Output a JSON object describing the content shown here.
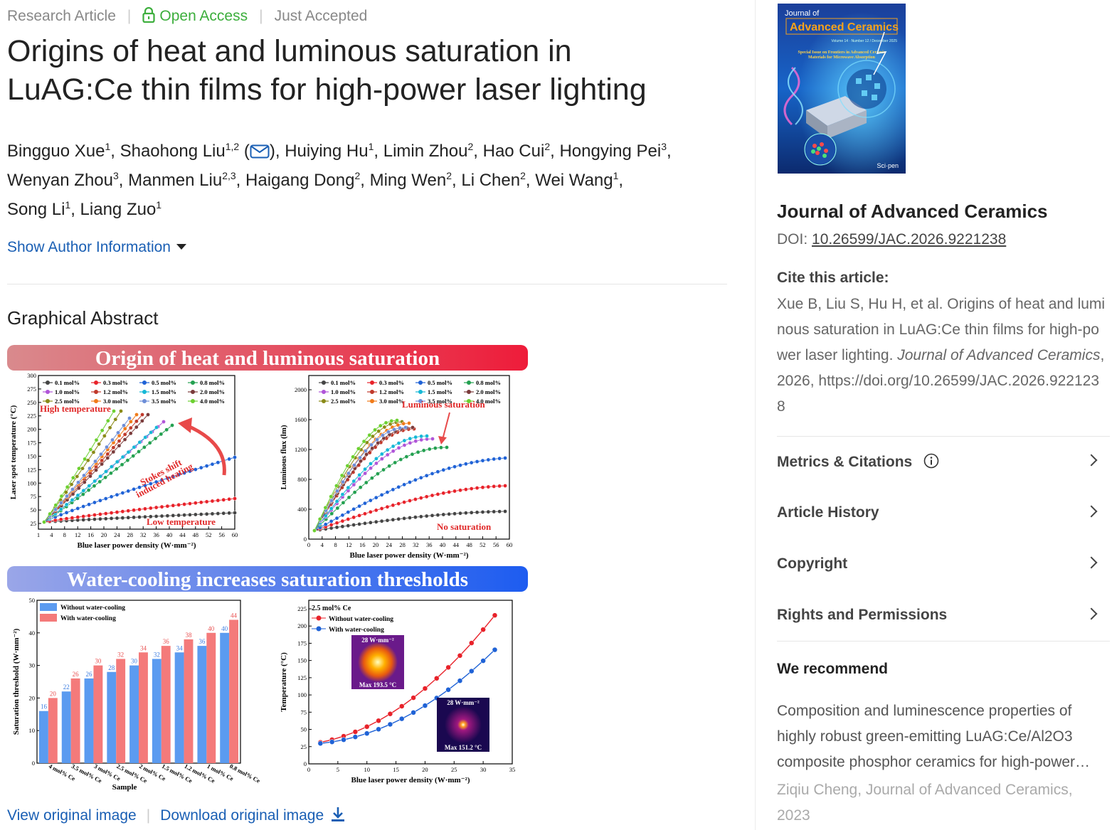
{
  "meta": {
    "type": "Research Article",
    "open_access": "Open Access",
    "status": "Just Accepted"
  },
  "title_line1": "Origins of heat and luminous saturation in",
  "title_line2": "LuAG:Ce thin films for high-power laser lighting",
  "authors": [
    {
      "name": "Bingguo Xue",
      "aff": "1"
    },
    {
      "name": "Shaohong Liu",
      "aff": "1,2"
    },
    {
      "name": "Huiying Hu",
      "aff": "1"
    },
    {
      "name": "Limin Zhou",
      "aff": "2"
    },
    {
      "name": "Hao Cui",
      "aff": "2"
    },
    {
      "name": "Hongying Pei",
      "aff": "3"
    },
    {
      "name": "Wenyan Zhou",
      "aff": "3"
    },
    {
      "name": "Manmen Liu",
      "aff": "2,3"
    },
    {
      "name": "Haigang Dong",
      "aff": "2"
    },
    {
      "name": "Ming Wen",
      "aff": "2"
    },
    {
      "name": "Li Chen",
      "aff": "2"
    },
    {
      "name": "Wei Wang",
      "aff": "1"
    },
    {
      "name": "Song Li",
      "aff": "1"
    },
    {
      "name": "Liang Zuo",
      "aff": "1"
    }
  ],
  "show_author_info": "Show Author Information",
  "graphical_abstract": {
    "heading": "Graphical Abstract",
    "banner1": "Origin of heat and luminous saturation",
    "banner2": "Water-cooling increases saturation thresholds",
    "legend_conc": [
      "0.1 mol%",
      "0.3 mol%",
      "0.5 mol%",
      "0.8 mol%",
      "1.0 mol%",
      "1.2 mol%",
      "1.5 mol%",
      "2.0 mol%",
      "2.5 mol%",
      "3.0 mol%",
      "3.5 mol%",
      "4.0 mol%"
    ],
    "p1": {
      "ylabel": "Laser spot temperature (°C)",
      "xlabel": "Blue laser power density (W·mm⁻²)",
      "ticks_y": [
        "300",
        "275",
        "250",
        "225",
        "200",
        "175",
        "150",
        "125",
        "100",
        "75",
        "50",
        "25"
      ],
      "ticks_x": [
        "1",
        "4",
        "8",
        "12",
        "16",
        "20",
        "24",
        "28",
        "32",
        "36",
        "40",
        "44",
        "48",
        "52",
        "56",
        "60"
      ],
      "ann_high": "High temperature",
      "ann_low": "Low temperature",
      "ann_stokes1": "Stokes shift",
      "ann_stokes2": "induced heating"
    },
    "p2": {
      "ylabel": "Luminous flux (lm)",
      "xlabel": "Blue laser power density (W·mm⁻²)",
      "ticks_y": [
        "2000",
        "1600",
        "1200",
        "800",
        "400",
        "0"
      ],
      "ticks_x": [
        "0",
        "4",
        "8",
        "12",
        "16",
        "20",
        "24",
        "28",
        "32",
        "36",
        "40",
        "44",
        "48",
        "52",
        "56",
        "60"
      ],
      "ann_sat": "Luminous saturation",
      "ann_nosat": "No saturation"
    },
    "p3": {
      "ylabel": "Saturation threshold (W·mm⁻²)",
      "xlabel": "Sample",
      "legend": [
        "Without water-cooling",
        "With water-cooling"
      ],
      "samples": [
        "4 mol% Ce",
        "3.5 mol% Ce",
        "3 mol% Ce",
        "2.5 mol% Ce",
        "2 mol% Ce",
        "1.5 mol% Ce",
        "1.2 mol% Ce",
        "1 mol% Ce",
        "0.8 mol% Ce"
      ],
      "without": [
        16,
        22,
        26,
        28,
        30,
        32,
        34,
        36,
        40
      ],
      "with": [
        20,
        26,
        30,
        32,
        34,
        36,
        38,
        40,
        44
      ],
      "ticks_y": [
        "50",
        "40",
        "30",
        "20",
        "10",
        "0"
      ]
    },
    "p4": {
      "ylabel": "Temperature (°C)",
      "xlabel": "Blue laser power density (W·mm⁻²)",
      "label": "2.5 mol% Ce",
      "legend": [
        "Without water-cooling",
        "With water-cooling"
      ],
      "ticks_y": [
        "225",
        "200",
        "175",
        "150",
        "125",
        "100",
        "75",
        "50",
        "25",
        "0"
      ],
      "ticks_x": [
        "0",
        "5",
        "10",
        "15",
        "20",
        "25",
        "30",
        "35"
      ],
      "inset1_power": "28 W·mm⁻²",
      "inset1_max": "Max 193.5 °C",
      "inset2_power": "28 W·mm⁻²",
      "inset2_max": "Max 151.2 °C"
    }
  },
  "image_links": {
    "view": "View original image",
    "download": "Download original image"
  },
  "cover": {
    "journal_small": "Journal of",
    "journal_big": "Advanced Ceramics",
    "vol": "Volume 14 · Number 12 / December 2025",
    "special1": "Special Issue on Frontiers in Advanced Ceramic",
    "special2": "Materials for Microwave Absorption",
    "publisher": "Sci·pen"
  },
  "sidebar": {
    "journal": "Journal of Advanced Ceramics",
    "doi_label": "DOI:",
    "doi": "10.26599/JAC.2026.9221238",
    "cite_heading": "Cite this article:",
    "cite_text_a": "Xue B, Liu S, Hu H, et al. Origins of heat and luminous saturation in LuAG:Ce thin films for high-power laser lighting.",
    "cite_journal": "Journal of Advanced Ceramics",
    "cite_text_b": ", 2026, https://doi.org/10.26599/JAC.2026.9221238",
    "accordion": [
      "Metrics & Citations",
      "Article History",
      "Copyright",
      "Rights and Permissions"
    ],
    "recommend_heading": "We recommend",
    "rec_line1": "Composition and luminescence properties of",
    "rec_line2": "highly robust green-emitting LuAG:Ce/Al2O3",
    "rec_line3": "composite phosphor ceramics for high-power…",
    "rec_source": "Ziqiu Cheng, Journal of Advanced Ceramics, 2023"
  },
  "colors": {
    "link": "#1a5fb4",
    "open_access": "#3cae3c",
    "banner_red": "#e8323c",
    "banner_blue": "#2563eb",
    "bar_blue": "#5b9bf0",
    "bar_red": "#f47a7a"
  }
}
